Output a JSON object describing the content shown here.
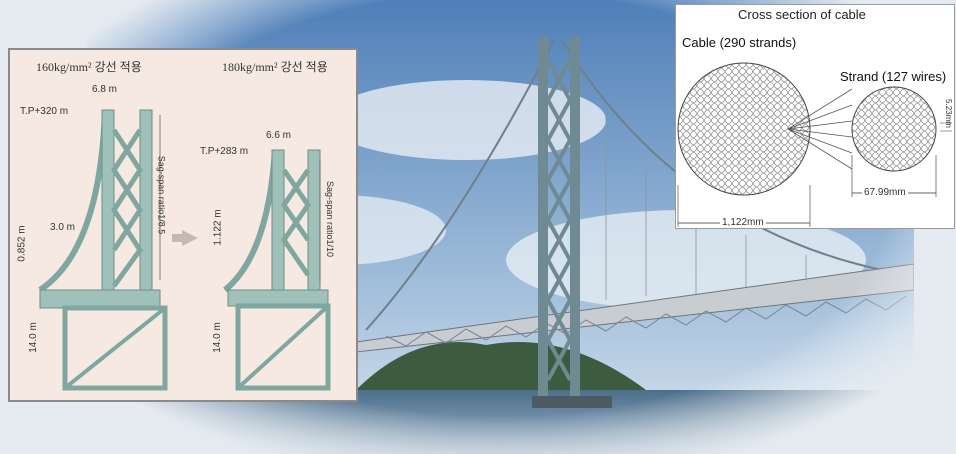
{
  "left_diagram": {
    "header_left": "160kg/mm² 강선 적용",
    "header_right": "180kg/mm² 강선 적용",
    "left_tower": {
      "tp_label": "T.P+320 m",
      "top_width": "6.8 m",
      "saddle_width": "3.0 m",
      "height_label": "0.852 m",
      "base_label": "14.0 m",
      "sag_label": "Sag-span ratio1/8.5"
    },
    "right_tower": {
      "tp_label": "T.P+283 m",
      "top_width": "6.6 m",
      "height_label": "1.122 m",
      "base_label": "14.0 m",
      "sag_label": "Sag-span ratio1/10"
    }
  },
  "cable_diagram": {
    "title": "Cross section of cable",
    "cable_label": "Cable (290 strands)",
    "strand_label": "Strand (127 wires)",
    "cable_dim": "1,122mm",
    "strand_dim": "67.99mm",
    "wire_dim": "5.23mm"
  }
}
